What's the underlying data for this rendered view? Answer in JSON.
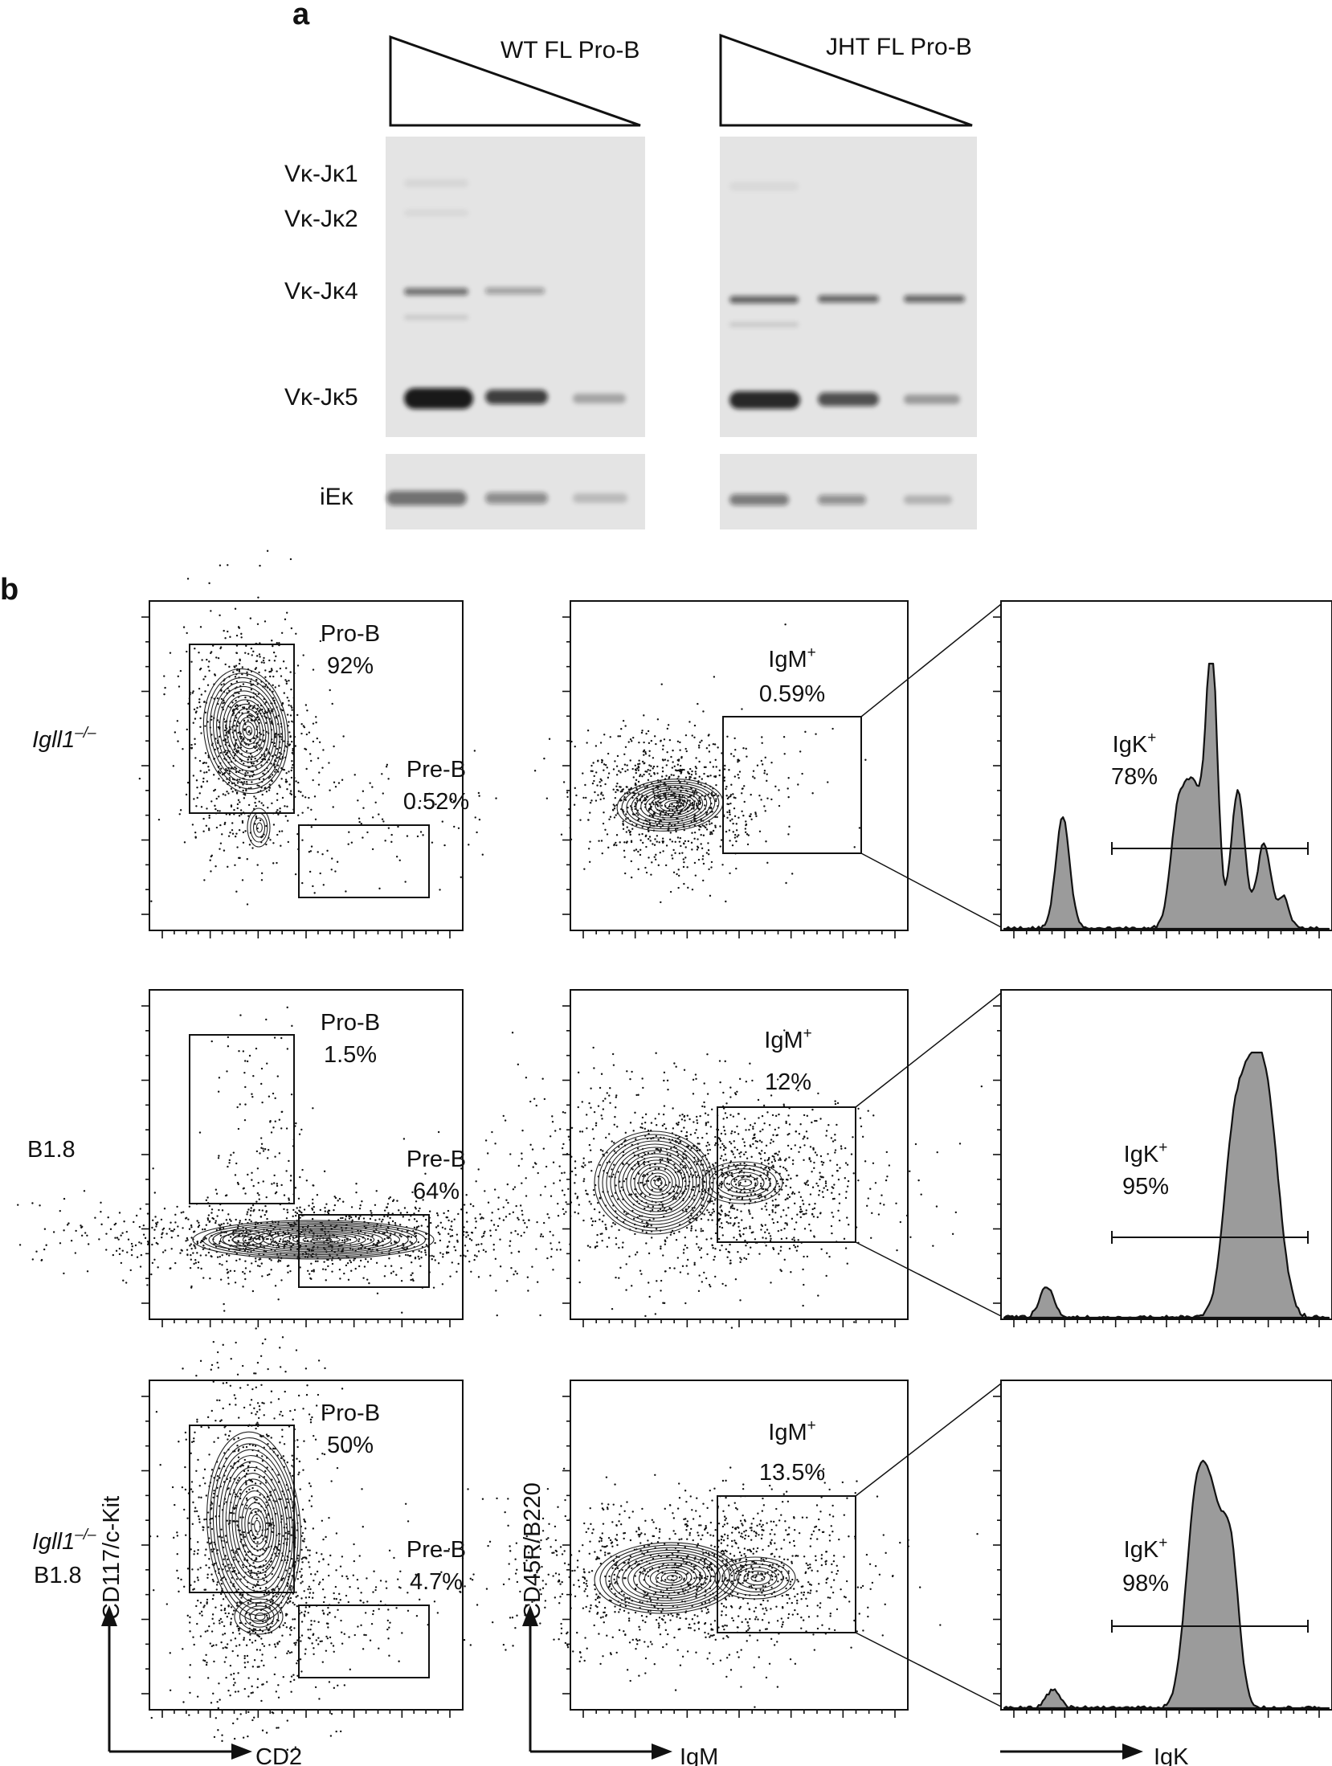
{
  "panel_a": {
    "letter": "a",
    "groups": [
      {
        "title": "WT FL Pro-B"
      },
      {
        "title": "JHT FL Pro-B"
      }
    ],
    "band_labels": [
      "Vκ-Jκ1",
      "Vκ-Jκ2",
      "Vκ-Jκ4",
      "Vκ-Jκ5"
    ],
    "control_label": "iEκ"
  },
  "panel_b": {
    "letter": "b",
    "rows": [
      {
        "label_line1": "Igll1",
        "label_sup": "–/–",
        "label_line2": "",
        "pro_b_label": "Pro-B",
        "pro_b_pct": "92%",
        "pre_b_label": "Pre-B",
        "pre_b_pct": "0.52%",
        "igm_label": "IgM",
        "igm_sup": "+",
        "igm_pct": "0.59%",
        "igk_label": "IgK",
        "igk_sup": "+",
        "igk_pct": "78%"
      },
      {
        "label_line1": "B1.8",
        "label_sup": "",
        "label_line2": "",
        "pro_b_label": "Pro-B",
        "pro_b_pct": "1.5%",
        "pre_b_label": "Pre-B",
        "pre_b_pct": "64%",
        "igm_label": "IgM",
        "igm_sup": "+",
        "igm_pct": "12%",
        "igk_label": "IgK",
        "igk_sup": "+",
        "igk_pct": "95%"
      },
      {
        "label_line1": "Igll1",
        "label_sup": "–/–",
        "label_line2": "B1.8",
        "pro_b_label": "Pro-B",
        "pro_b_pct": "50%",
        "pre_b_label": "Pre-B",
        "pre_b_pct": "4.7%",
        "igm_label": "IgM",
        "igm_sup": "+",
        "igm_pct": "13.5%",
        "igk_label": "IgK",
        "igk_sup": "+",
        "igk_pct": "98%"
      }
    ],
    "axes": {
      "col1_y": "CD117/c-Kit",
      "col1_x": "CD2",
      "col2_y": "CD45R/B220",
      "col2_x": "IgM",
      "col3_x": "IgK"
    }
  },
  "colors": {
    "ink": "#111111",
    "gel_background": "#e4e4e4",
    "histogram_fill": "#9b9b9b"
  }
}
